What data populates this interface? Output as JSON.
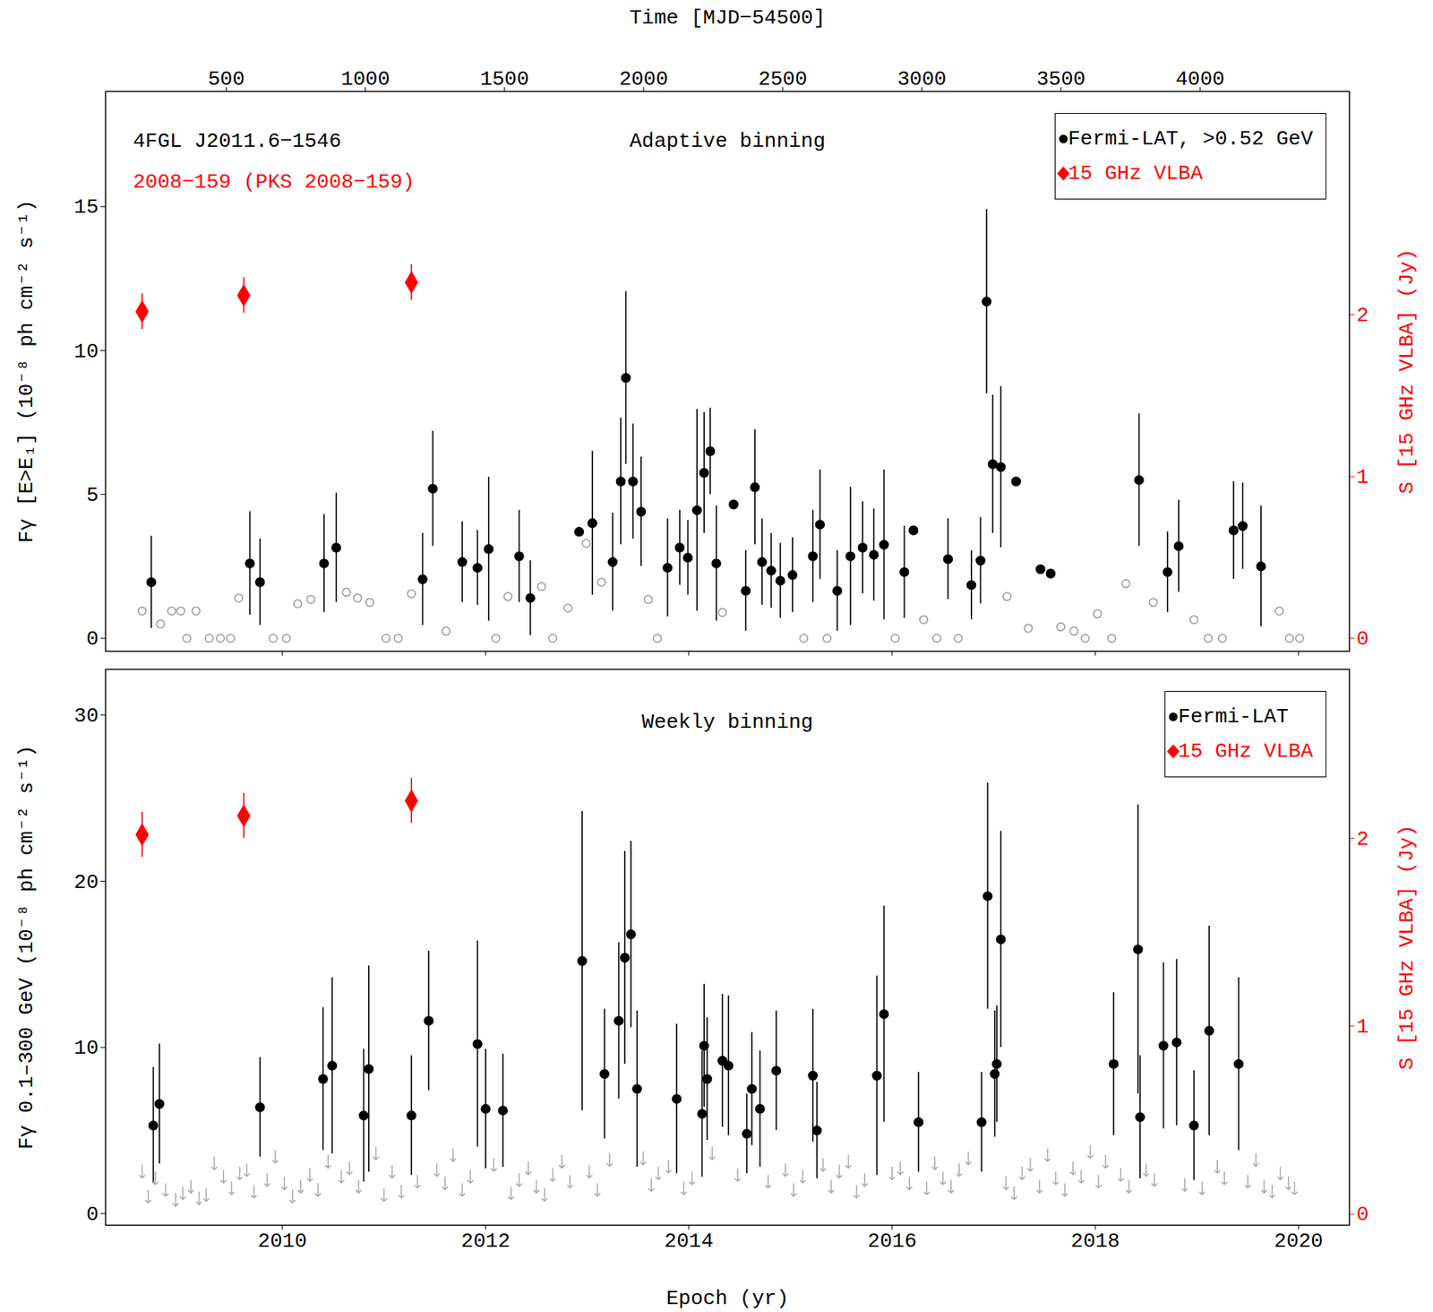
{
  "chart_data": [
    {
      "type": "scatter",
      "title": "Adaptive binning",
      "annotations": [
        {
          "text": "4FGL J2011.6−1546",
          "color": "#000000"
        },
        {
          "text": "2008−159 (PKS 2008−159)",
          "color": "#ff0000"
        }
      ],
      "x2_label": "Time [MJD−54500]",
      "y_label": "Fγ [E>E₁] (10⁻⁸ ph cm⁻² s⁻¹)",
      "y2_label": "S [15 GHz VLBA] (Jy)",
      "xlim": [
        2008.26,
        2020.5
      ],
      "xticks": [
        2010,
        2012,
        2014,
        2016,
        2018,
        2020
      ],
      "x2lim": [
        66,
        4537
      ],
      "x2ticks": [
        500,
        1000,
        1500,
        2000,
        2500,
        3000,
        3500,
        4000
      ],
      "ylim": [
        -0.45,
        19
      ],
      "yticks": [
        0,
        5,
        10,
        15
      ],
      "y2lim": [
        -0.08,
        3.38
      ],
      "y2ticks": [
        0,
        1,
        2
      ],
      "legend": "top-right",
      "series": [
        {
          "name": "Fermi-LAT, >0.52 GeV",
          "color": "#000000",
          "marker": "circle",
          "x": [
            2008.71,
            2009.68,
            2009.78,
            2010.41,
            2010.53,
            2011.38,
            2011.48,
            2011.77,
            2011.92,
            2012.03,
            2012.33,
            2012.44,
            2012.92,
            2013.05,
            2013.25,
            2013.33,
            2013.38,
            2013.45,
            2013.53,
            2013.79,
            2013.91,
            2013.99,
            2014.08,
            2014.15,
            2014.21,
            2014.27,
            2014.44,
            2014.56,
            2014.65,
            2014.72,
            2014.81,
            2014.9,
            2015.02,
            2015.22,
            2015.29,
            2015.46,
            2015.59,
            2015.71,
            2015.82,
            2015.92,
            2016.12,
            2016.21,
            2016.55,
            2016.78,
            2016.87,
            2016.93,
            2016.99,
            2017.07,
            2017.22,
            2017.46,
            2017.56,
            2018.43,
            2018.71,
            2018.82,
            2019.36,
            2019.45,
            2019.63
          ],
          "values": [
            1.95,
            2.6,
            1.95,
            2.6,
            3.15,
            2.05,
            5.2,
            2.65,
            2.45,
            3.1,
            2.85,
            1.4,
            3.7,
            4.0,
            2.65,
            5.45,
            9.05,
            5.45,
            4.4,
            2.45,
            3.15,
            2.8,
            4.45,
            5.75,
            6.5,
            2.6,
            4.65,
            1.65,
            5.25,
            2.65,
            2.35,
            2.0,
            2.2,
            2.85,
            3.95,
            1.65,
            2.85,
            3.15,
            2.9,
            3.25,
            2.3,
            3.75,
            2.75,
            1.85,
            2.7,
            11.7,
            6.05,
            5.95,
            5.45,
            2.4,
            2.25,
            5.5,
            2.3,
            3.2,
            3.75,
            3.9,
            2.5
          ],
          "yerr": [
            1.6,
            1.8,
            1.5,
            1.7,
            1.9,
            1.6,
            2.0,
            1.4,
            1.3,
            2.5,
            1.6,
            1.3,
            0.1,
            2.5,
            1.7,
            2.2,
            3.0,
            2.0,
            1.9,
            1.7,
            1.3,
            1.3,
            3.5,
            2.1,
            1.5,
            2.0,
            0.1,
            1.4,
            2.0,
            1.5,
            1.3,
            1.3,
            1.3,
            1.6,
            1.9,
            1.4,
            2.4,
            1.6,
            1.6,
            2.6,
            1.6,
            0.1,
            1.4,
            1.2,
            1.5,
            3.2,
            2.4,
            2.8,
            0.1,
            0.1,
            0.1,
            2.3,
            1.4,
            1.6,
            1.7,
            1.5,
            2.1
          ]
        },
        {
          "color": "#999999",
          "marker": "circle_open",
          "x": [
            2008.62,
            2008.8,
            2008.91,
            2009.0,
            2009.06,
            2009.15,
            2009.28,
            2009.39,
            2009.49,
            2009.57,
            2009.91,
            2010.04,
            2010.15,
            2010.28,
            2010.63,
            2010.74,
            2010.86,
            2011.02,
            2011.14,
            2011.27,
            2011.61,
            2012.1,
            2012.22,
            2012.55,
            2012.66,
            2012.81,
            2012.99,
            2013.14,
            2013.6,
            2013.69,
            2014.33,
            2015.13,
            2015.36,
            2016.03,
            2016.31,
            2016.44,
            2016.65,
            2017.13,
            2017.34,
            2017.66,
            2017.79,
            2017.9,
            2018.02,
            2018.16,
            2018.3,
            2018.57,
            2018.97,
            2019.11,
            2019.25,
            2019.81,
            2019.91,
            2020.01
          ],
          "values": [
            0.95,
            0.5,
            0.95,
            0.95,
            0,
            0.95,
            0,
            0,
            0,
            1.4,
            0,
            0,
            1.2,
            1.35,
            1.6,
            1.4,
            1.25,
            0,
            0,
            1.55,
            0.25,
            0,
            1.45,
            1.8,
            0,
            1.05,
            3.3,
            1.95,
            1.35,
            0,
            0.9,
            0,
            0,
            0,
            0.65,
            0,
            0,
            1.45,
            0.35,
            0.4,
            0.25,
            0,
            0.85,
            0,
            1.9,
            1.25,
            0.65,
            0,
            0,
            0.95,
            0,
            0
          ]
        },
        {
          "name": "15 GHz VLBA",
          "color": "#ff0000",
          "marker": "diamond",
          "axis": "y2",
          "x": [
            2008.62,
            2009.62,
            2011.27
          ],
          "values": [
            2.02,
            2.12,
            2.2
          ],
          "yerr": [
            0.11,
            0.11,
            0.11
          ]
        }
      ]
    },
    {
      "type": "scatter",
      "title": "Weekly binning",
      "x_label": "Epoch (yr)",
      "y_label": "Fγ 0.1–300 GeV (10⁻⁸ ph cm⁻² s⁻¹)",
      "y2_label": "S [15 GHz VLBA] (Jy)",
      "xlim": [
        2008.26,
        2020.5
      ],
      "xticks": [
        2010,
        2012,
        2014,
        2016,
        2018,
        2020
      ],
      "ylim": [
        -0.7,
        32.75
      ],
      "yticks": [
        0,
        10,
        20,
        30
      ],
      "y2lim": [
        -0.06,
        2.9
      ],
      "y2ticks": [
        0,
        1,
        2
      ],
      "legend": "top-right",
      "series": [
        {
          "name": "Fermi-LAT",
          "color": "#000000",
          "marker": "circle",
          "x": [
            2008.73,
            2008.79,
            2009.78,
            2010.4,
            2010.49,
            2010.8,
            2010.85,
            2011.27,
            2011.44,
            2011.92,
            2012.0,
            2012.17,
            2012.95,
            2013.17,
            2013.31,
            2013.37,
            2013.43,
            2013.49,
            2013.88,
            2014.13,
            2014.15,
            2014.18,
            2014.33,
            2014.39,
            2014.57,
            2014.62,
            2014.7,
            2014.86,
            2015.22,
            2015.26,
            2015.85,
            2015.92,
            2016.26,
            2016.88,
            2016.94,
            2017.01,
            2017.03,
            2017.07,
            2018.18,
            2018.42,
            2018.44,
            2018.67,
            2018.8,
            2018.97,
            2019.12,
            2019.41
          ],
          "values": [
            5.3,
            6.6,
            6.4,
            8.1,
            8.9,
            5.9,
            8.7,
            5.9,
            11.6,
            10.2,
            6.3,
            6.2,
            15.2,
            8.4,
            11.6,
            15.4,
            16.8,
            7.5,
            6.9,
            6.0,
            10.1,
            8.1,
            9.2,
            8.9,
            4.8,
            7.5,
            6.3,
            8.6,
            8.3,
            5.0,
            8.3,
            12.0,
            5.5,
            5.5,
            19.1,
            8.4,
            9.0,
            16.5,
            9.0,
            15.9,
            5.8,
            10.1,
            10.3,
            5.3,
            11.0,
            9.0
          ],
          "yerr": [
            3.5,
            3.6,
            3.0,
            4.3,
            5.3,
            4.0,
            6.2,
            3.6,
            4.2,
            6.2,
            3.6,
            3.4,
            9.0,
            3.9,
            4.7,
            6.4,
            5.6,
            4.7,
            4.5,
            3.8,
            3.7,
            3.7,
            4.0,
            4.2,
            2.4,
            3.4,
            3.5,
            3.6,
            4.0,
            2.9,
            6.0,
            6.5,
            3.0,
            3.0,
            6.8,
            3.8,
            3.5,
            6.5,
            4.3,
            8.7,
            3.7,
            5.0,
            5.0,
            3.3,
            6.3,
            5.2
          ]
        },
        {
          "color": "#aaaaaa",
          "marker": "arrow_down",
          "x": [
            2008.62,
            2008.68,
            2008.75,
            2008.85,
            2008.95,
            2009.02,
            2009.1,
            2009.18,
            2009.25,
            2009.33,
            2009.42,
            2009.5,
            2009.58,
            2009.65,
            2009.72,
            2009.85,
            2009.93,
            2010.02,
            2010.1,
            2010.18,
            2010.27,
            2010.35,
            2010.45,
            2010.58,
            2010.66,
            2010.75,
            2010.92,
            2011.0,
            2011.08,
            2011.17,
            2011.33,
            2011.52,
            2011.6,
            2011.68,
            2011.77,
            2011.85,
            2012.08,
            2012.25,
            2012.33,
            2012.42,
            2012.5,
            2012.58,
            2012.66,
            2012.75,
            2012.83,
            2013.02,
            2013.1,
            2013.22,
            2013.55,
            2013.63,
            2013.7,
            2013.8,
            2013.95,
            2014.03,
            2014.23,
            2014.48,
            2014.78,
            2014.95,
            2015.03,
            2015.12,
            2015.32,
            2015.4,
            2015.48,
            2015.57,
            2015.65,
            2015.73,
            2016.0,
            2016.08,
            2016.17,
            2016.34,
            2016.42,
            2016.5,
            2016.58,
            2016.66,
            2016.75,
            2017.12,
            2017.2,
            2017.28,
            2017.36,
            2017.45,
            2017.53,
            2017.61,
            2017.7,
            2017.78,
            2017.86,
            2017.95,
            2018.03,
            2018.1,
            2018.25,
            2018.33,
            2018.5,
            2018.58,
            2018.88,
            2019.05,
            2019.2,
            2019.27,
            2019.5,
            2019.58,
            2019.66,
            2019.74,
            2019.82,
            2019.9,
            2019.96
          ],
          "values": [
            2.9,
            1.4,
            2.5,
            1.8,
            1.2,
            1.6,
            2.0,
            1.3,
            1.5,
            3.4,
            2.6,
            1.9,
            2.8,
            3.0,
            1.7,
            2.4,
            3.8,
            2.2,
            1.4,
            2.0,
            2.7,
            1.8,
            3.5,
            2.6,
            3.1,
            2.0,
            4.0,
            1.5,
            2.9,
            1.7,
            2.3,
            3.0,
            2.2,
            3.9,
            1.8,
            2.6,
            3.3,
            1.6,
            2.4,
            3.1,
            2.0,
            1.5,
            2.7,
            3.5,
            2.3,
            2.9,
            1.8,
            3.6,
            3.7,
            2.1,
            2.8,
            3.2,
            1.9,
            2.5,
            4.0,
            2.7,
            2.3,
            3.0,
            1.8,
            2.6,
            3.3,
            2.0,
            2.9,
            3.5,
            1.7,
            2.4,
            2.8,
            3.1,
            2.2,
            1.9,
            3.4,
            2.5,
            2.0,
            3.0,
            3.7,
            2.2,
            1.6,
            2.8,
            3.3,
            2.0,
            3.9,
            2.5,
            1.8,
            3.1,
            2.6,
            4.1,
            2.3,
            3.5,
            2.7,
            2.0,
            3.0,
            2.4,
            2.1,
            1.9,
            3.2,
            2.5,
            2.3,
            3.6,
            2.0,
            1.7,
            2.8,
            2.2,
            1.9
          ]
        },
        {
          "name": "15 GHz VLBA",
          "color": "#ff0000",
          "marker": "diamond",
          "axis": "y2",
          "x": [
            2008.62,
            2009.62,
            2011.27
          ],
          "values": [
            2.02,
            2.12,
            2.2
          ],
          "yerr": [
            0.12,
            0.12,
            0.12
          ]
        }
      ]
    }
  ]
}
